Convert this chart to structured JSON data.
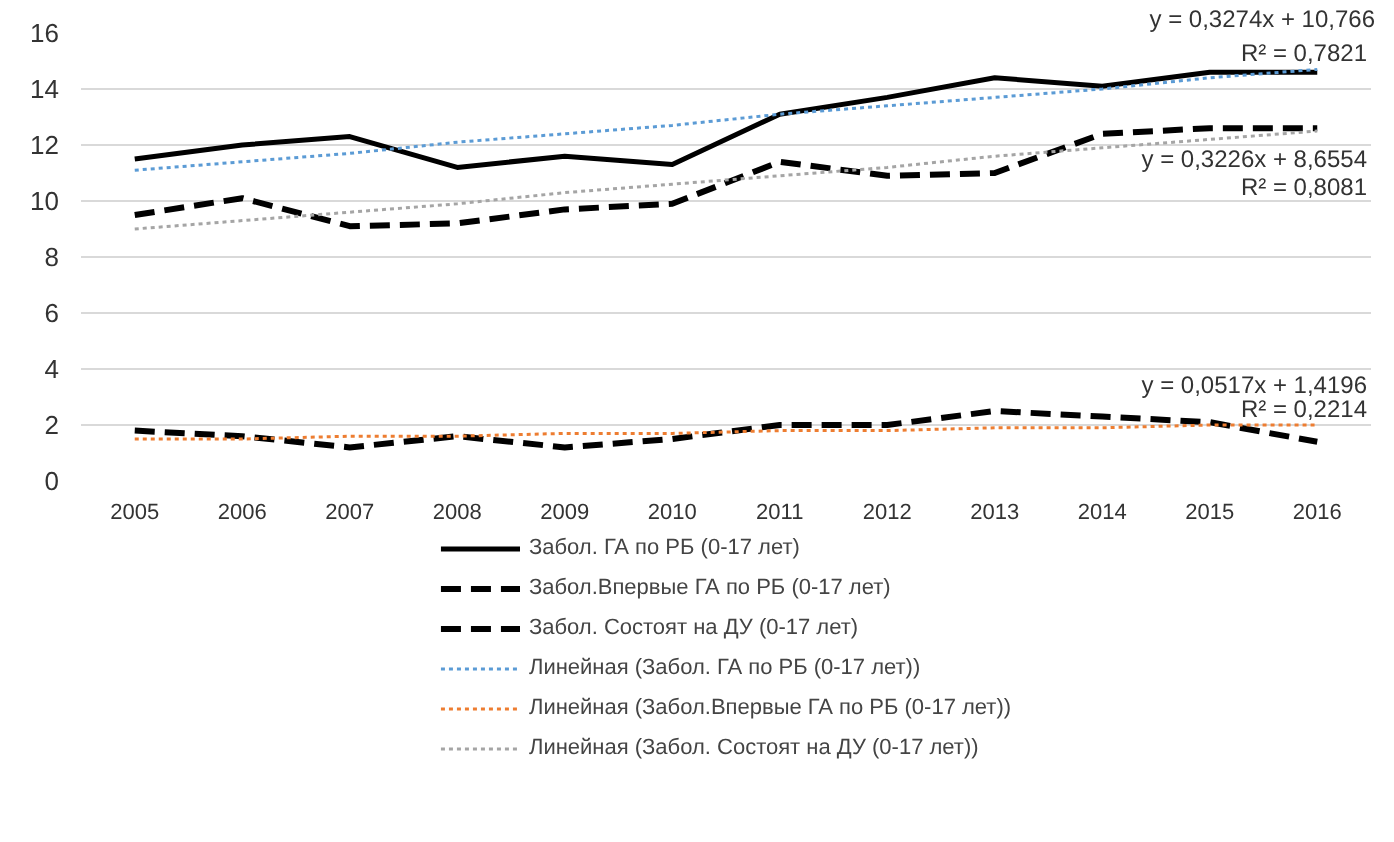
{
  "chart_data": {
    "type": "line",
    "categories": [
      "2005",
      "2006",
      "2007",
      "2008",
      "2009",
      "2010",
      "2011",
      "2012",
      "2013",
      "2014",
      "2015",
      "2016"
    ],
    "series": [
      {
        "name": "Забол. ГА по РБ (0-17 лет)",
        "color": "#000000",
        "line_style": "solid",
        "values": [
          11.5,
          12.0,
          12.3,
          11.2,
          11.6,
          11.3,
          13.1,
          13.7,
          14.4,
          14.1,
          14.6,
          14.6
        ]
      },
      {
        "name": "Забол.Впервые ГА по РБ (0-17 лет)",
        "color": "#000000",
        "line_style": "dashed",
        "values": [
          1.8,
          1.6,
          1.2,
          1.6,
          1.2,
          1.5,
          2.0,
          2.0,
          2.5,
          2.3,
          2.1,
          1.4
        ]
      },
      {
        "name": "Забол. Состоят на ДУ (0-17 лет)",
        "color": "#000000",
        "line_style": "dashed",
        "values": [
          9.5,
          10.1,
          9.1,
          9.2,
          9.7,
          9.9,
          11.4,
          10.9,
          11.0,
          12.4,
          12.6,
          12.6
        ]
      },
      {
        "name": "Линейная (Забол. ГА по РБ (0-17 лет))",
        "color": "#5b9bd5",
        "line_style": "dotted",
        "values": [
          11.1,
          11.4,
          11.7,
          12.1,
          12.4,
          12.7,
          13.1,
          13.4,
          13.7,
          14.0,
          14.4,
          14.7
        ]
      },
      {
        "name": "Линейная (Забол.Впервые ГА по РБ (0-17 лет))",
        "color": "#ed7d31",
        "line_style": "dotted",
        "values": [
          1.5,
          1.5,
          1.6,
          1.6,
          1.7,
          1.7,
          1.8,
          1.8,
          1.9,
          1.9,
          2.0,
          2.0
        ]
      },
      {
        "name": "Линейная (Забол. Состоят на ДУ (0-17 лет))",
        "color": "#a5a5a5",
        "line_style": "dotted",
        "values": [
          9.0,
          9.3,
          9.6,
          9.9,
          10.3,
          10.6,
          10.9,
          11.2,
          11.6,
          11.9,
          12.2,
          12.5
        ]
      }
    ],
    "ylim": [
      0,
      16
    ],
    "yticks": [
      0,
      2,
      4,
      6,
      8,
      10,
      12,
      14,
      16
    ],
    "grid": "y",
    "legend": "bottom",
    "annotations": [
      "y = 0,3274x + 10,766",
      "R² = 0,7821",
      "y = 0,3226x + 8,6554",
      "R² = 0,8081",
      "y = 0,0517x + 1,4196",
      "R² = 0,2214"
    ]
  }
}
